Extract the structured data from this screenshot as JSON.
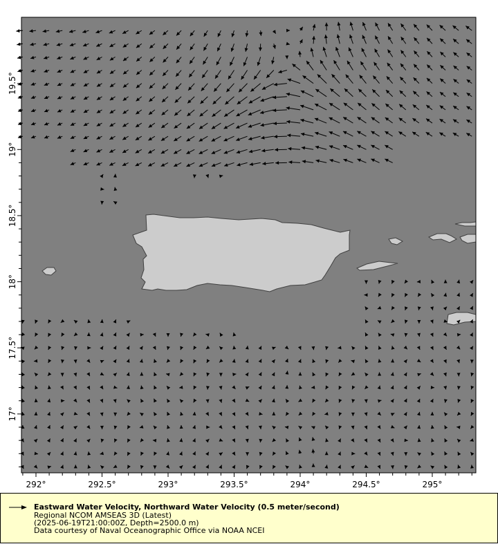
{
  "chart_data": {
    "type": "vector",
    "xlim": [
      291.89,
      295.33
    ],
    "ylim": [
      16.555,
      20.0
    ],
    "x_ticks": [
      292,
      292.5,
      293,
      293.5,
      294,
      294.5,
      295
    ],
    "x_tick_labels": [
      "292°",
      "292.5°",
      "293°",
      "293.5°",
      "294°",
      "294.5°",
      "295°"
    ],
    "y_ticks": [
      19.5,
      19,
      18.5,
      18,
      17.5,
      17
    ],
    "y_tick_labels": [
      "19.5°",
      "19°",
      "18.5°",
      "18°",
      "17.5°",
      "17°"
    ],
    "minor_tick_step": 0.1,
    "vector_grid_step": 0.1,
    "reference_speed": 0.5,
    "grid": false,
    "colors": {
      "ocean": "#808080",
      "land": "#cccccc",
      "coast": "#404040",
      "arrow": "#000000",
      "legend_bg": "#ffffcc"
    }
  },
  "legend": {
    "title": "Eastward Water Velocity, Northward Water Velocity (0.5 meter/second)",
    "dataset": "Regional NCOM AMSEAS 3D (Latest)",
    "query": "(2025-06-19T21:00:00Z, Depth=2500.0 m)",
    "credit": "Data courtesy of Naval Oceanographic Office via NOAA NCEI"
  }
}
